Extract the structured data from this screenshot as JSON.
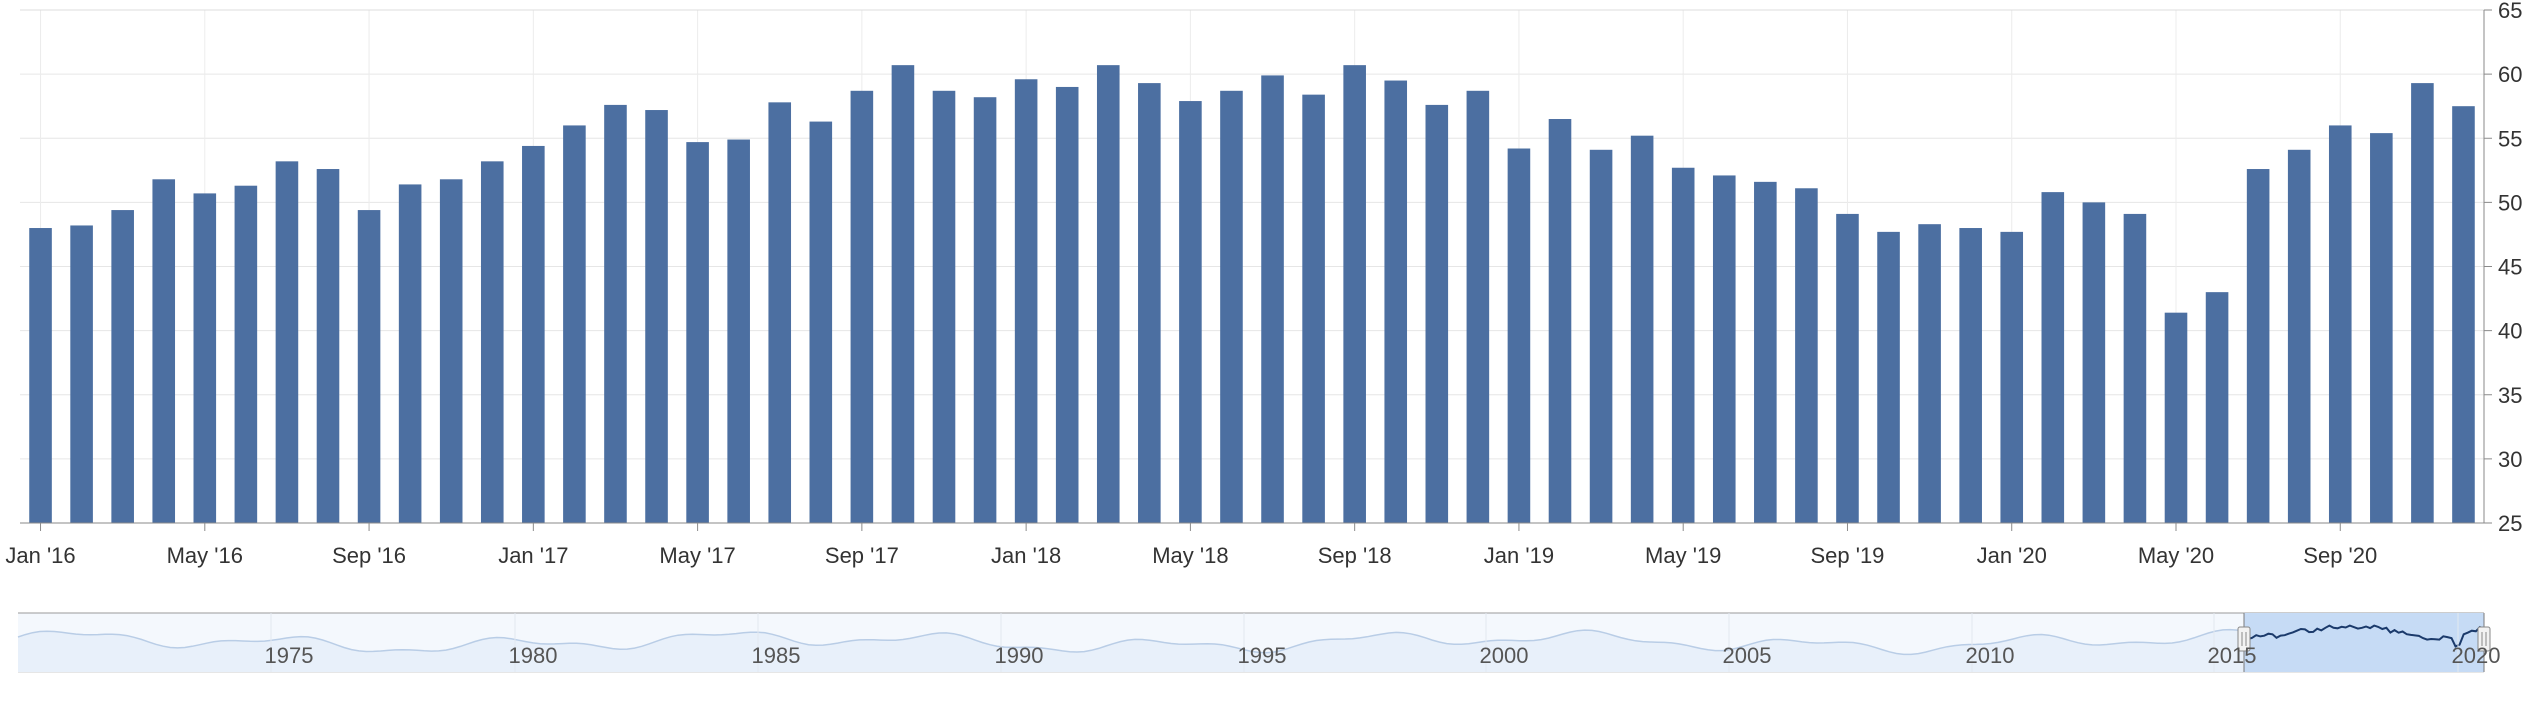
{
  "chart_data": {
    "type": "bar",
    "title": "",
    "xlabel": "",
    "ylabel": "",
    "ylim": [
      25,
      65
    ],
    "yticks": [
      "25",
      "30",
      "35",
      "40",
      "45",
      "50",
      "55",
      "60",
      "65"
    ],
    "grid": true,
    "legend": "none",
    "bar_color": "#4c6fa1",
    "categories": [
      "Jan '16",
      "Feb '16",
      "Mar '16",
      "Apr '16",
      "May '16",
      "Jun '16",
      "Jul '16",
      "Aug '16",
      "Sep '16",
      "Oct '16",
      "Nov '16",
      "Dec '16",
      "Jan '17",
      "Feb '17",
      "Mar '17",
      "Apr '17",
      "May '17",
      "Jun '17",
      "Jul '17",
      "Aug '17",
      "Sep '17",
      "Oct '17",
      "Nov '17",
      "Dec '17",
      "Jan '18",
      "Feb '18",
      "Mar '18",
      "Apr '18",
      "May '18",
      "Jun '18",
      "Jul '18",
      "Aug '18",
      "Sep '18",
      "Oct '18",
      "Nov '18",
      "Dec '18",
      "Jan '19",
      "Feb '19",
      "Mar '19",
      "Apr '19",
      "May '19",
      "Jun '19",
      "Jul '19",
      "Aug '19",
      "Sep '19",
      "Oct '19",
      "Nov '19",
      "Dec '19",
      "Jan '20",
      "Feb '20",
      "Mar '20",
      "Apr '20",
      "May '20",
      "Jun '20",
      "Jul '20",
      "Aug '20",
      "Sep '20",
      "Oct '20",
      "Nov '20",
      "Dec '20"
    ],
    "x_tick_labels": [
      "Jan '16",
      "May '16",
      "Sep '16",
      "Jan '17",
      "May '17",
      "Sep '17",
      "Jan '18",
      "May '18",
      "Sep '18",
      "Jan '19",
      "May '19",
      "Sep '19",
      "Jan '20",
      "May '20",
      "Sep '20"
    ],
    "values": [
      48.0,
      48.2,
      49.4,
      51.8,
      50.7,
      51.3,
      53.2,
      52.6,
      49.4,
      51.4,
      51.8,
      53.2,
      54.4,
      56.0,
      57.6,
      57.2,
      54.7,
      54.9,
      57.8,
      56.3,
      58.7,
      60.7,
      58.7,
      58.2,
      59.6,
      59.0,
      60.7,
      59.3,
      57.9,
      58.7,
      59.9,
      58.4,
      60.7,
      59.5,
      57.6,
      58.7,
      54.2,
      56.5,
      54.1,
      55.2,
      52.7,
      52.1,
      51.6,
      51.1,
      49.1,
      47.7,
      48.3,
      48.0,
      47.7,
      50.8,
      50.0,
      49.1,
      41.4,
      43.0,
      52.6,
      54.1,
      56.0,
      55.4,
      59.3,
      57.5
    ],
    "navigator": {
      "labels": [
        "1975",
        "1980",
        "1985",
        "1990",
        "1995",
        "2000",
        "2005",
        "2010",
        "2015",
        "2020"
      ],
      "line_color": "#1b3a6b",
      "fill_color": "#c6dbf5"
    }
  }
}
